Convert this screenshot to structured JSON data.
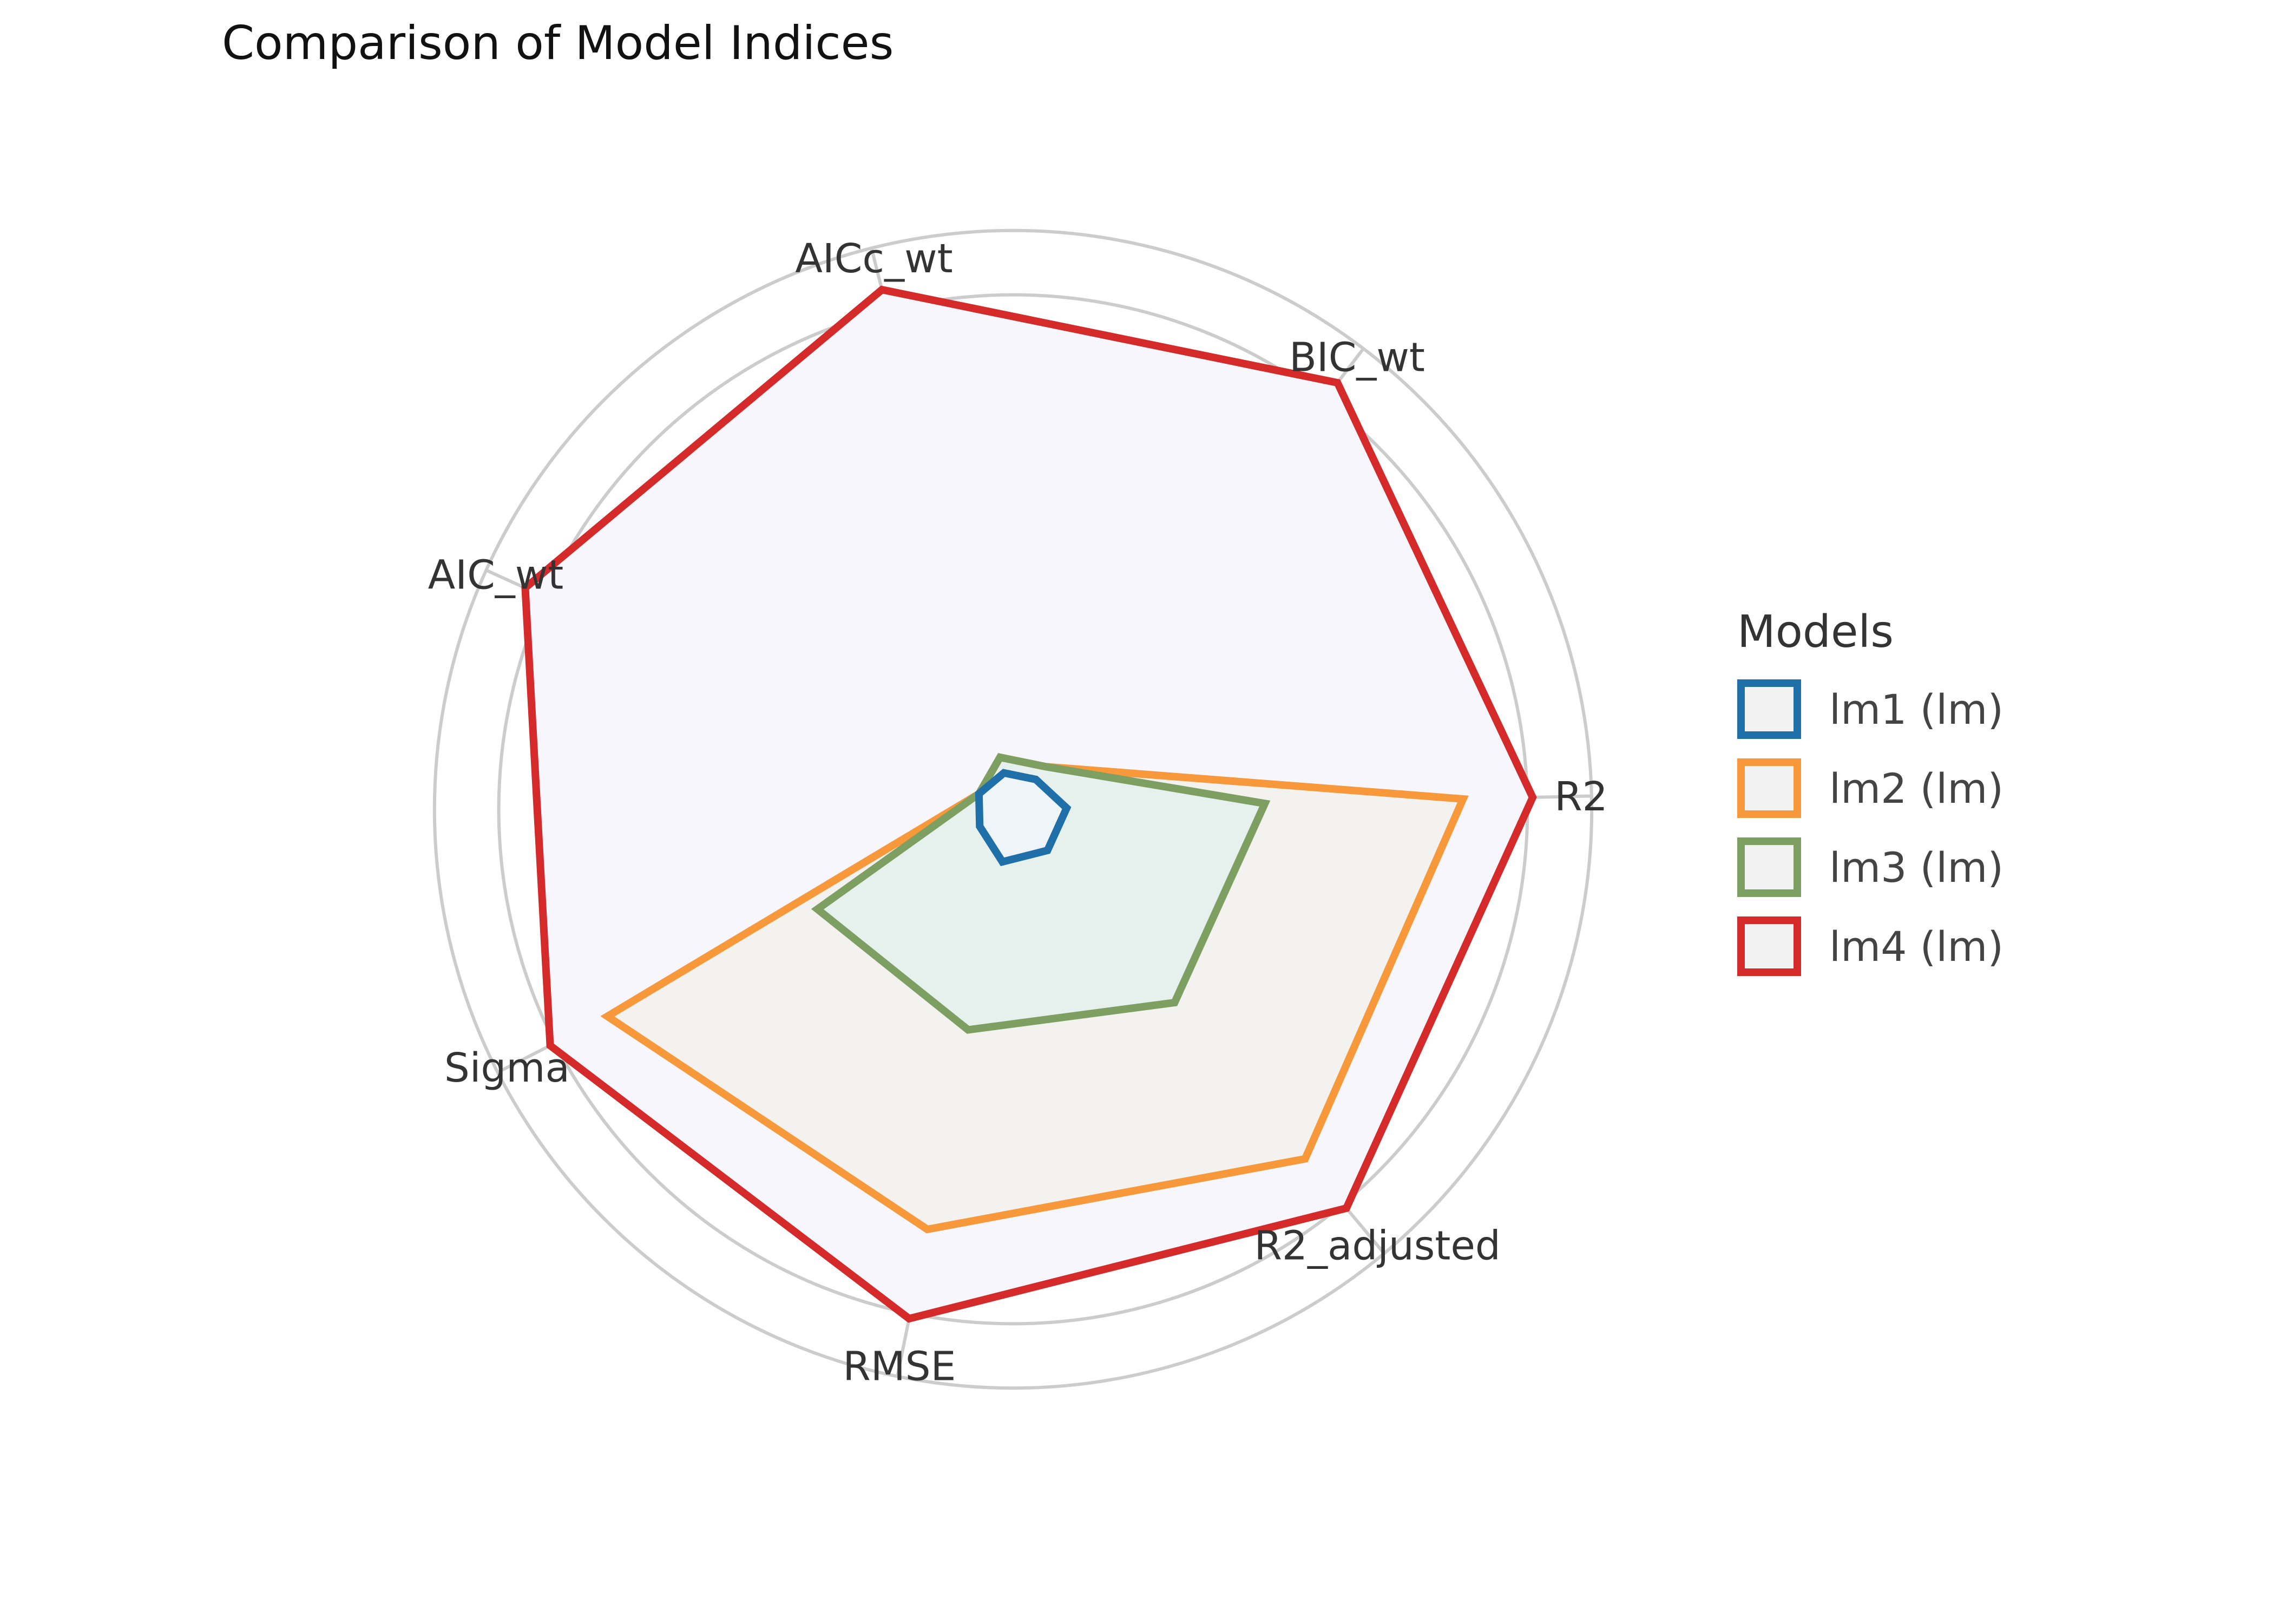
{
  "chart_data": {
    "type": "radar",
    "title": "Comparison of Model Indices",
    "legend": {
      "title": "Models",
      "placement": "right"
    },
    "axes": [
      "AIC_wt",
      "AICc_wt",
      "BIC_wt",
      "R2",
      "R2_adjusted",
      "RMSE",
      "Sigma"
    ],
    "range": [
      0,
      1
    ],
    "grid": true,
    "series": [
      {
        "name": "lm1 (lm)",
        "color": "#1f6fa8",
        "fill": "#eef4f8",
        "values": [
          0.07,
          0.07,
          0.07,
          0.1,
          0.1,
          0.1,
          0.07
        ]
      },
      {
        "name": "lm2 (lm)",
        "color": "#f7993a",
        "fill": "#f3f2ef",
        "values": [
          0.07,
          0.1,
          0.1,
          0.84,
          0.85,
          0.8,
          0.85
        ]
      },
      {
        "name": "lm3 (lm)",
        "color": "#7d9f62",
        "fill": "#e6f1ee",
        "values": [
          0.07,
          0.1,
          0.1,
          0.47,
          0.47,
          0.42,
          0.41
        ]
      },
      {
        "name": "lm4 (lm)",
        "color": "#d42a2a",
        "fill": "#f8f6fd",
        "values": [
          1.0,
          1.0,
          1.0,
          0.97,
          0.97,
          0.97,
          0.97
        ]
      }
    ]
  }
}
